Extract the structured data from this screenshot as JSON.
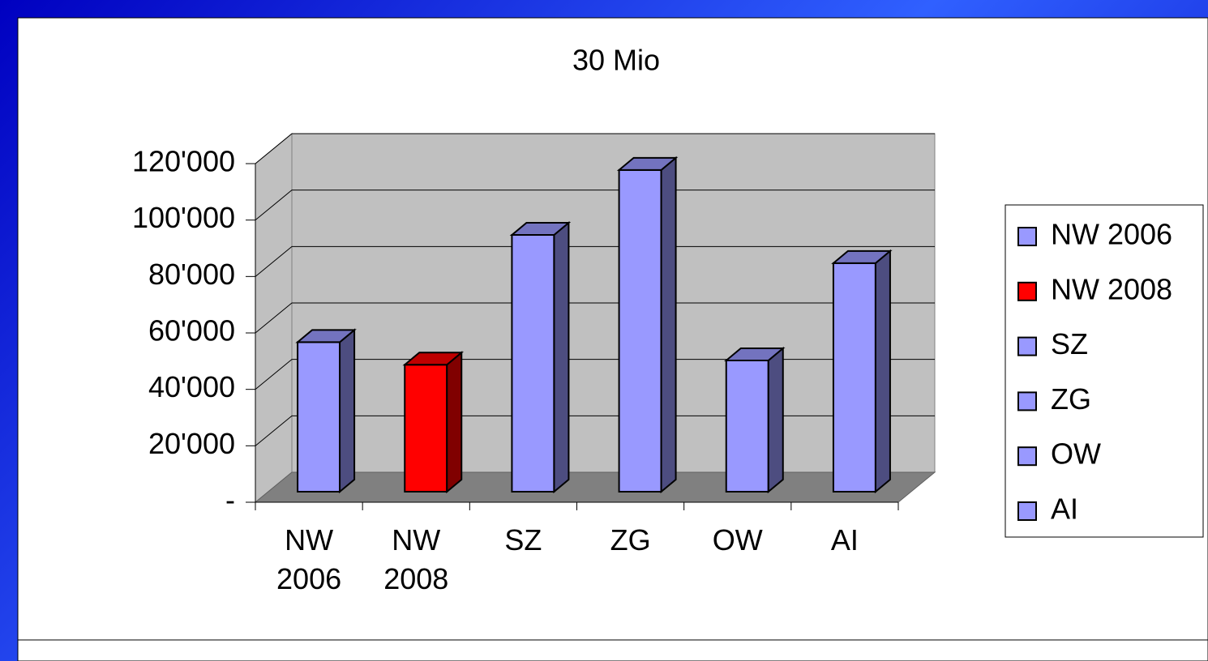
{
  "chart_data": {
    "type": "bar3d",
    "title": "30 Mio",
    "categories": [
      "NW 2006",
      "NW 2008",
      "SZ",
      "ZG",
      "OW",
      "AI"
    ],
    "values": [
      53000,
      45000,
      91000,
      114000,
      46500,
      81000
    ],
    "colors": [
      "#9999ff",
      "#ff0000",
      "#9999ff",
      "#9999ff",
      "#9999ff",
      "#9999ff"
    ],
    "ylim": [
      0,
      120000
    ],
    "yticks": [
      {
        "value": 0,
        "label": "-"
      },
      {
        "value": 20000,
        "label": "20'000"
      },
      {
        "value": 40000,
        "label": "40'000"
      },
      {
        "value": 60000,
        "label": "60'000"
      },
      {
        "value": 80000,
        "label": "80'000"
      },
      {
        "value": 100000,
        "label": "100'000"
      },
      {
        "value": 120000,
        "label": "120'000"
      }
    ],
    "grid": true,
    "legend": "right"
  }
}
